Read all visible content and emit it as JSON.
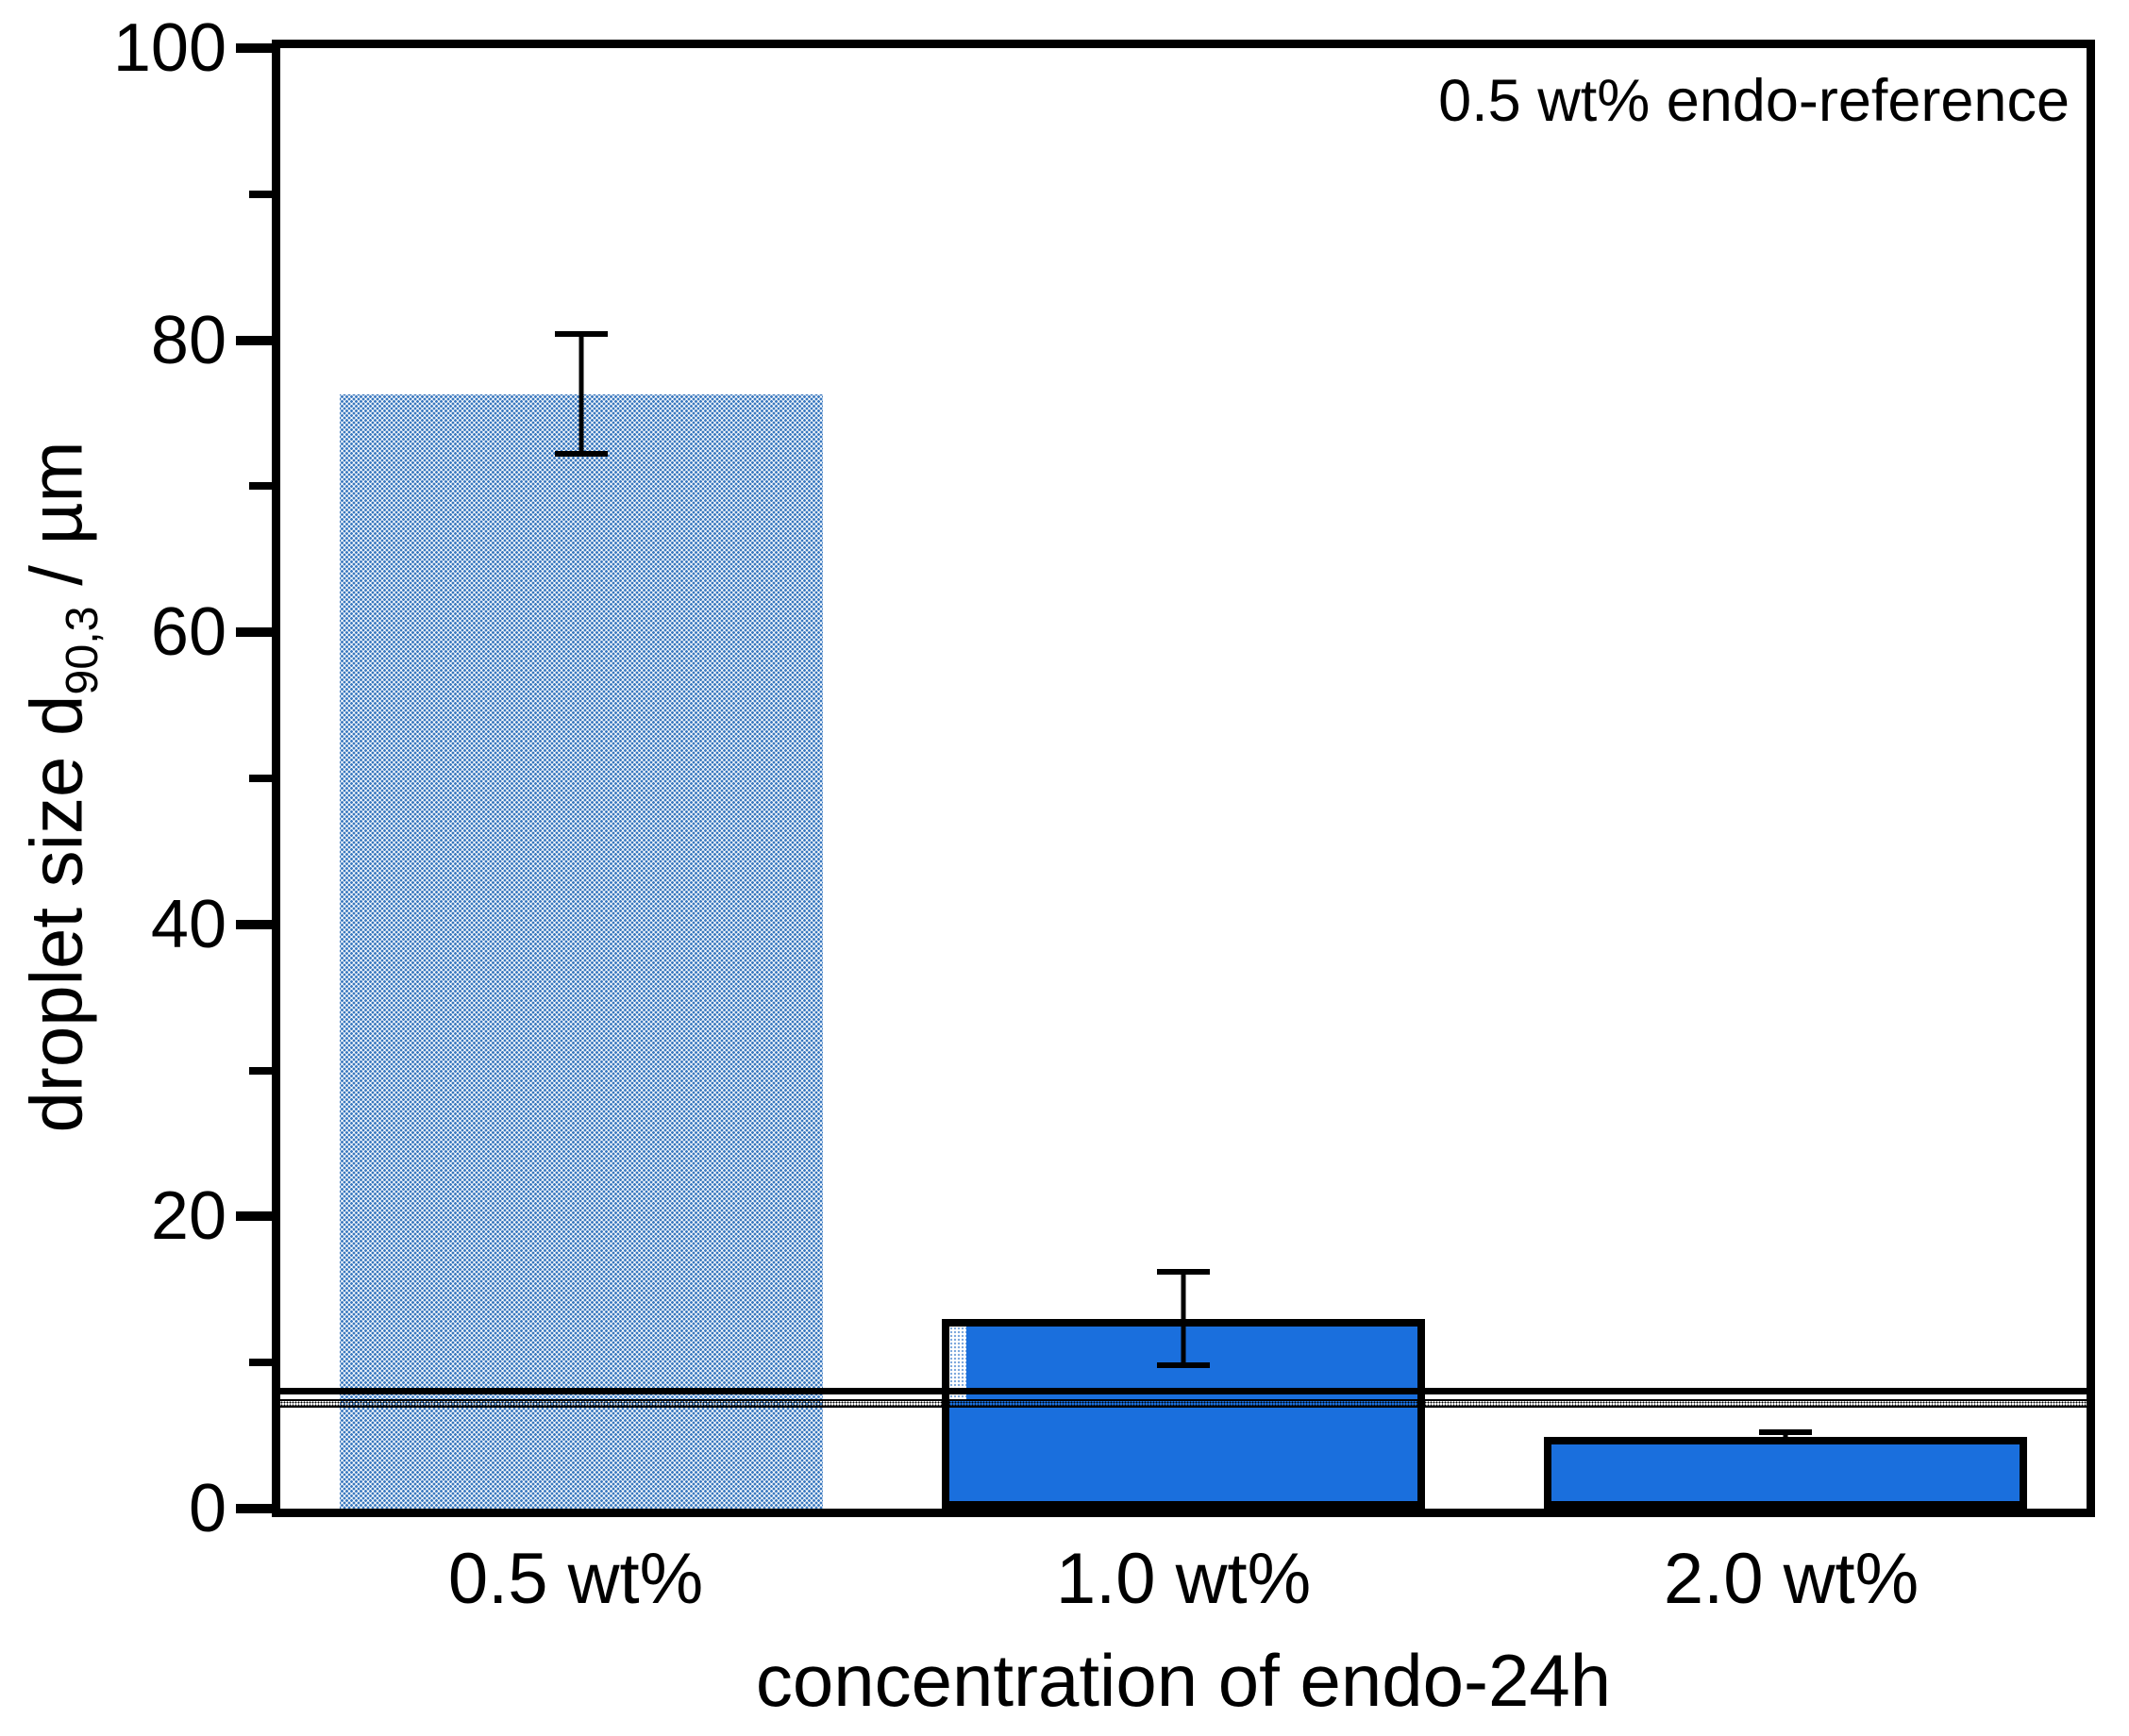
{
  "chart_data": {
    "type": "bar",
    "title": "",
    "xlabel": "concentration of endo-24h",
    "ylabel_main": "droplet size d",
    "ylabel_sub": "90,3",
    "ylabel_unit": " / µm",
    "ylabel_full": "droplet size d90,3 / µm",
    "categories": [
      "0.5 wt%",
      "1.0 wt%",
      "2.0 wt%"
    ],
    "values": [
      76.3,
      13.0,
      4.9
    ],
    "error_upper": [
      80.6,
      16.4,
      5.4
    ],
    "error_lower": [
      72.0,
      9.6,
      4.5
    ],
    "annotation": "0.5 wt% endo-reference",
    "reference_line_value": 8.0,
    "reference_band": [
      6.9,
      7.5
    ],
    "ylim": [
      0,
      100
    ],
    "yticks_major": [
      0,
      20,
      40,
      60,
      80,
      100
    ],
    "yticks_minor": [
      10,
      30,
      50,
      70,
      90
    ],
    "grid": "off",
    "legend": "none",
    "bar_styles": [
      "pattern-dotted",
      "solid",
      "solid"
    ],
    "colors": {
      "bar_solid": "#1a6fdd",
      "bar_pattern_dot": "#3b79bf",
      "axis": "#000000",
      "reference_band_dot": "#000000"
    }
  }
}
